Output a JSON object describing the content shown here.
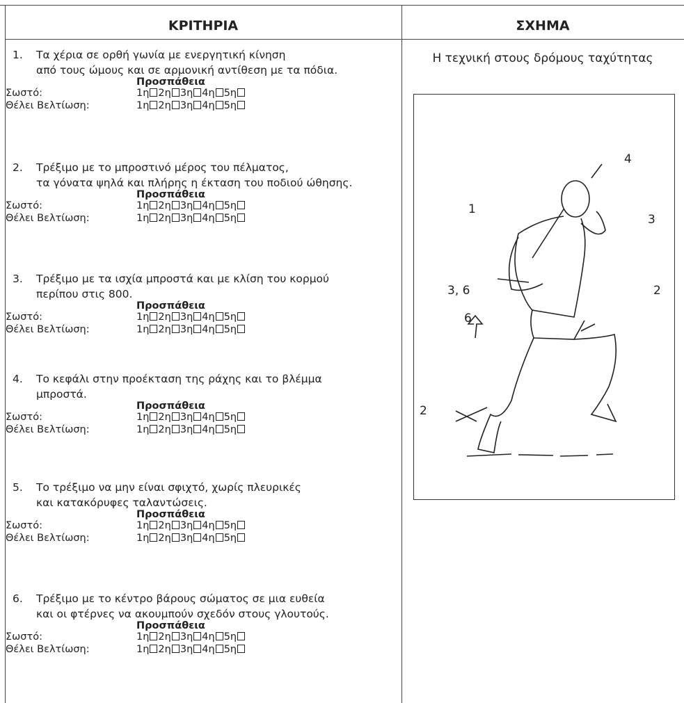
{
  "header": {
    "criteria": "ΚΡΙΤΗΡΙΑ",
    "figure": "ΣΧΗΜΑ"
  },
  "criteria": [
    {
      "number": "1.",
      "lines": [
        "Τα χέρια σε ορθή γωνία με ενεργητική κίνηση",
        "από τους ώμους και σε αρμονική αντίθεση με τα πόδια."
      ],
      "attempts_heading": "Προσπάθεια",
      "rows": [
        {
          "label": "Σωστό:",
          "attempts": [
            "1η",
            "2η",
            "3η",
            "4η",
            "5η"
          ]
        },
        {
          "label": "Θέλει Βελτίωση:",
          "attempts": [
            "1η",
            "2η",
            "3η",
            "4η",
            "5η"
          ]
        }
      ]
    },
    {
      "number": "2.",
      "lines": [
        "Τρέξιμο με το μπροστινό μέρος του πέλματος,",
        "τα γόνατα ψηλά και πλήρης η έκταση του ποδιού ώθησης."
      ],
      "attempts_heading": "Προσπάθεια",
      "rows": [
        {
          "label": "Σωστό:",
          "attempts": [
            "1η",
            "2η",
            "3η",
            "4η",
            "5η"
          ]
        },
        {
          "label": "Θέλει Βελτίωση:",
          "attempts": [
            "1η",
            "2η",
            "3η",
            "4η",
            "5η"
          ]
        }
      ]
    },
    {
      "number": "3.",
      "lines": [
        "Τρέξιμο με τα ισχία μπροστά και με κλίση του κορμού",
        "περίπου στις 800."
      ],
      "attempts_heading": "Προσπάθεια",
      "rows": [
        {
          "label": "Σωστό:",
          "attempts": [
            "1η",
            "2η",
            "3η",
            "4η",
            "5η"
          ]
        },
        {
          "label": "Θέλει Βελτίωση:",
          "attempts": [
            "1η",
            "2η",
            "3η",
            "4η",
            "5η"
          ]
        }
      ]
    },
    {
      "number": "4.",
      "lines": [
        "Το κεφάλι στην προέκταση της ράχης και το βλέμμα",
        "μπροστά."
      ],
      "attempts_heading": "Προσπάθεια",
      "rows": [
        {
          "label": "Σωστό:",
          "attempts": [
            "1η",
            "2η",
            "3η",
            "4η",
            "5η"
          ]
        },
        {
          "label": "Θέλει Βελτίωση:",
          "attempts": [
            "1η",
            "2η",
            "3η",
            "4η",
            "5η"
          ]
        }
      ]
    },
    {
      "number": "5.",
      "lines": [
        "Το τρέξιμο να μην είναι σφιχτό, χωρίς πλευρικές",
        "και κατακόρυφες ταλαντώσεις."
      ],
      "attempts_heading": "Προσπάθεια",
      "rows": [
        {
          "label": "Σωστό:",
          "attempts": [
            "1η",
            "2η",
            "3η",
            "4η",
            "5η"
          ]
        },
        {
          "label": "Θέλει Βελτίωση:",
          "attempts": [
            "1η",
            "2η",
            "3η",
            "4η",
            "5η"
          ]
        }
      ]
    },
    {
      "number": "6.",
      "lines": [
        "Τρέξιμο με το κέντρο βάρους σώματος σε μια ευθεία",
        "και οι φτέρνες να ακουμπούν σχεδόν στους γλουτούς."
      ],
      "attempts_heading": "Προσπάθεια",
      "rows": [
        {
          "label": "Σωστό:",
          "attempts": [
            "1η",
            "2η",
            "3η",
            "4η",
            "5η"
          ]
        },
        {
          "label": "Θέλει Βελτίωση:",
          "attempts": [
            "1η",
            "2η",
            "3η",
            "4η",
            "5η"
          ]
        }
      ]
    }
  ],
  "figure": {
    "caption": "Η τεχνική στους δρόμους ταχύτητας",
    "labels": [
      "4",
      "1",
      "3",
      "3, 6",
      "2",
      "6",
      "2"
    ]
  }
}
